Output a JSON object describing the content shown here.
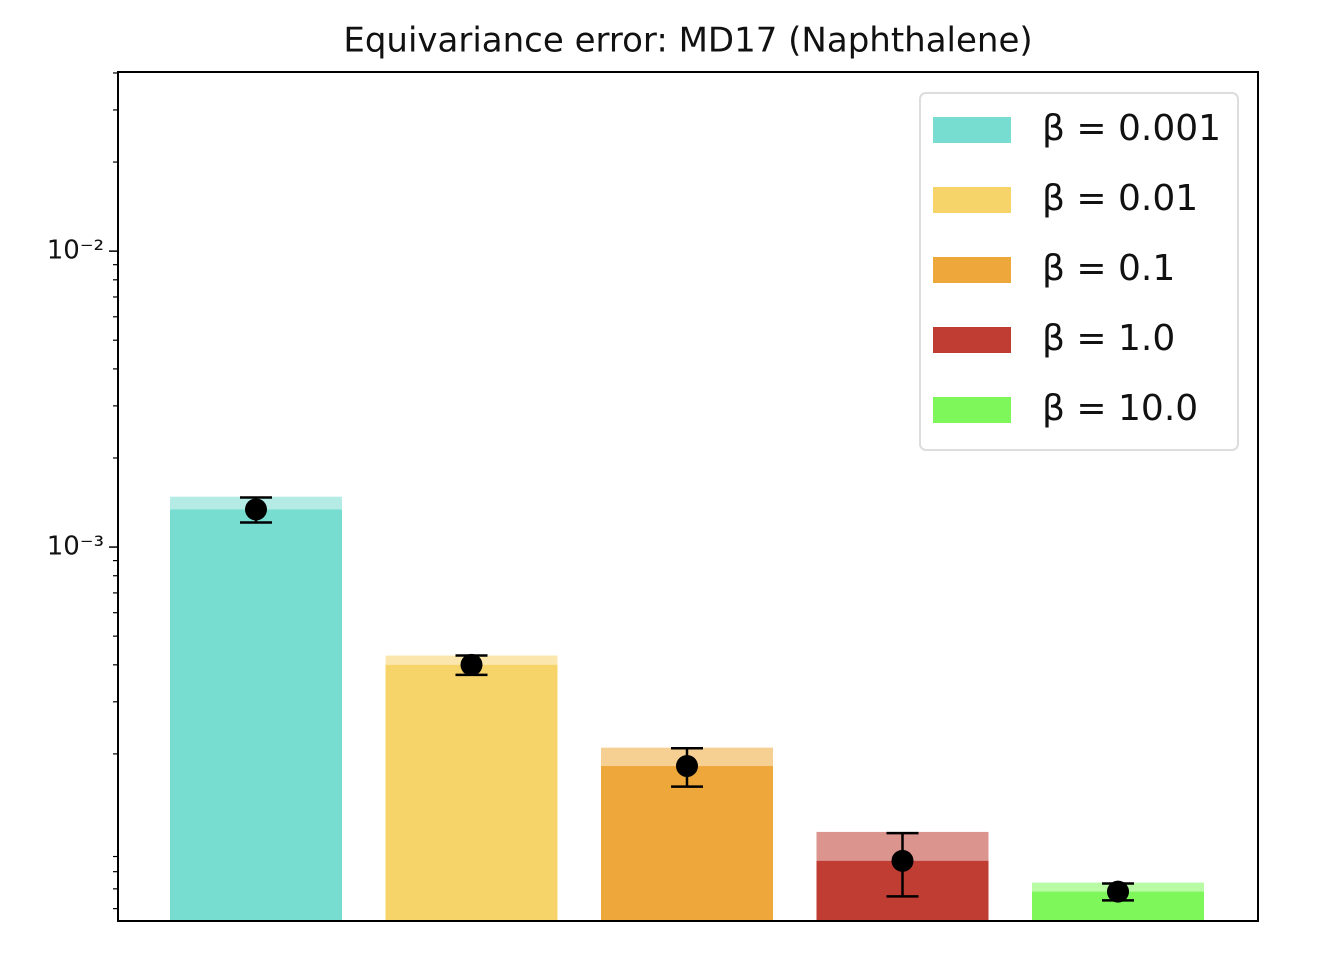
{
  "chart_data": {
    "type": "bar",
    "title": "Equivariance error: MD17 (Naphthalene)",
    "log_scale": true,
    "ylim": [
      5.45e-05,
      0.0403
    ],
    "yticks": [
      {
        "value": 0.01,
        "label": "10⁻²"
      },
      {
        "value": 0.001,
        "label": "10⁻³"
      }
    ],
    "yminor_ticks": [
      6e-05,
      7e-05,
      8e-05,
      9e-05,
      0.0002,
      0.0003,
      0.0004,
      0.0005,
      0.0006,
      0.0007,
      0.0008,
      0.0009,
      0.002,
      0.003,
      0.004,
      0.005,
      0.006,
      0.007,
      0.008,
      0.009,
      0.02,
      0.03,
      0.04
    ],
    "legend": "upper right",
    "series": [
      {
        "name": "β = 0.001",
        "color": "#76ddd0",
        "values": [
          0.00134
        ],
        "errors": [
          0.00013
        ],
        "upper": [
          0.00148
        ]
      },
      {
        "name": "β = 0.01",
        "color": "#f7d46a",
        "values": [
          0.0004
        ],
        "errors": [
          3e-05
        ],
        "upper": [
          0.00043
        ]
      },
      {
        "name": "β = 0.1",
        "color": "#eea73b",
        "values": [
          0.000182
        ],
        "errors": [
          2.7e-05
        ],
        "upper": [
          0.00021
        ]
      },
      {
        "name": "β = 1.0",
        "color": "#c03d33",
        "values": [
          8.7e-05
        ],
        "errors": [
          2.1e-05
        ],
        "upper": [
          0.000109
        ]
      },
      {
        "name": "β = 10.0",
        "color": "#7df75a",
        "values": [
          6.85e-05
        ],
        "errors": [
          4.5e-06
        ],
        "upper": [
          7.35e-05
        ]
      }
    ]
  }
}
